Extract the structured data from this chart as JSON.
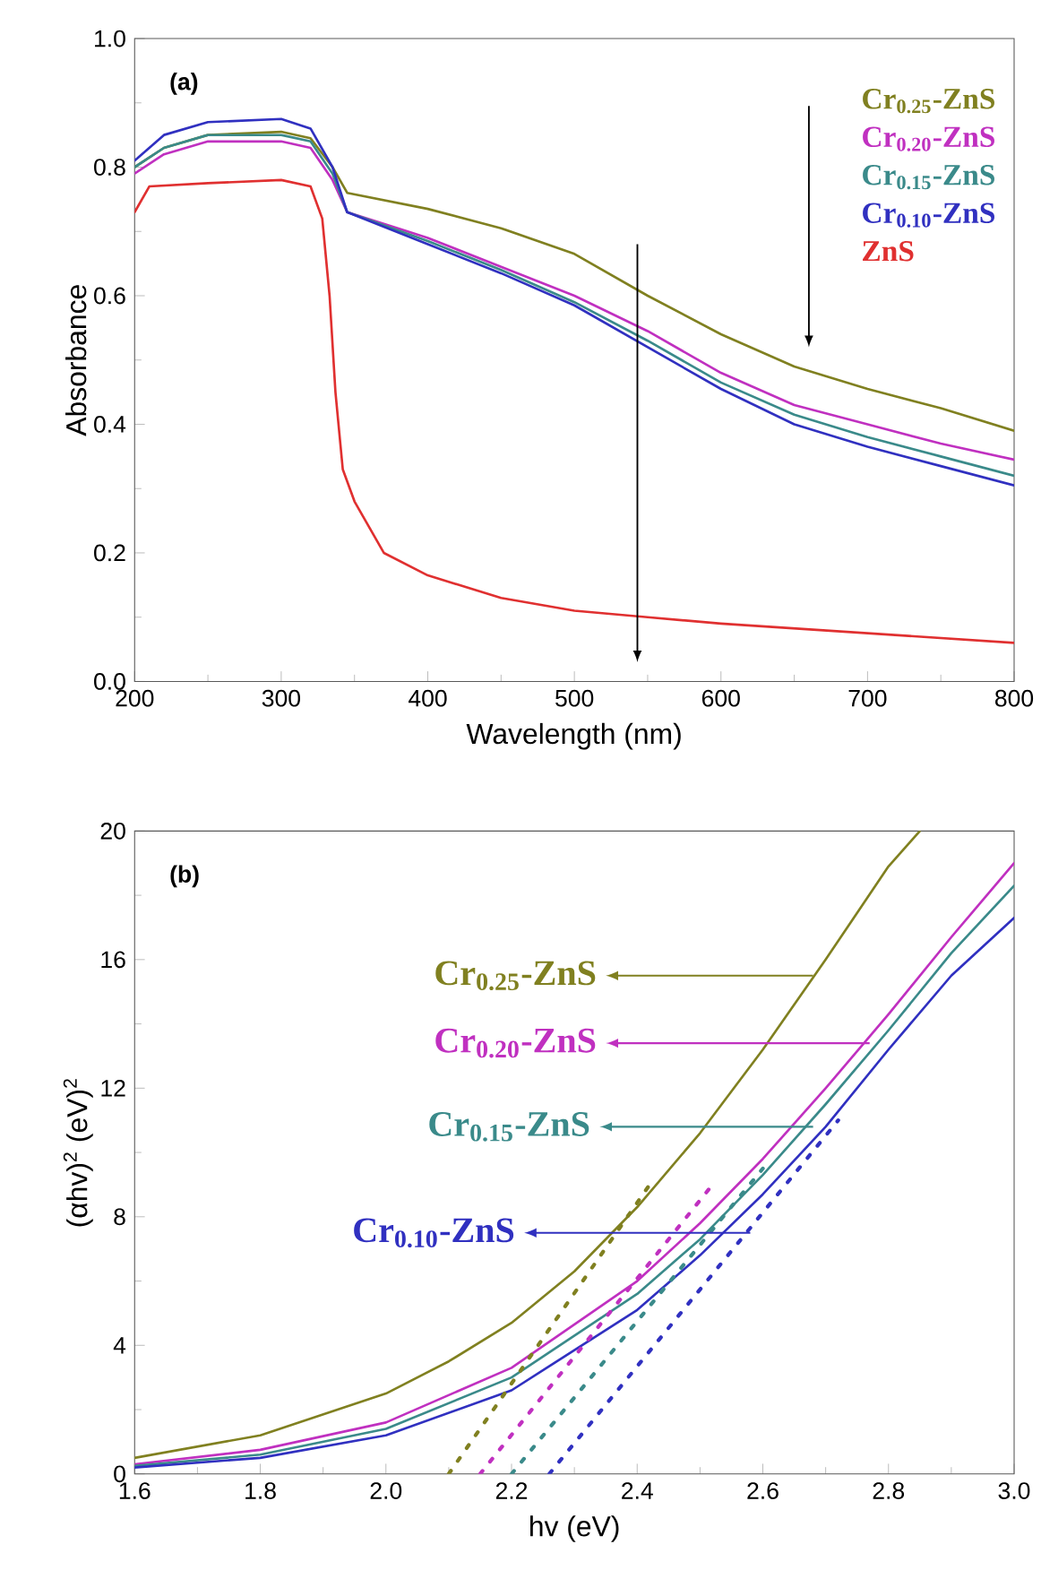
{
  "chart_data": [
    {
      "type": "line",
      "xlabel": "Wavelength (nm)",
      "ylabel": "Absorbance",
      "xlim": [
        200,
        800
      ],
      "ylim": [
        0,
        1
      ],
      "xticks": [
        200,
        300,
        400,
        500,
        600,
        700,
        800
      ],
      "yticks": [
        {
          "value": 0,
          "label": "0.0"
        },
        0.2,
        0.4,
        0.6,
        0.8,
        {
          "value": 1,
          "label": "1.0"
        }
      ],
      "legend": "top right",
      "marker": "none",
      "line_style": "solid",
      "grid": false,
      "annotations": [
        "(a)"
      ],
      "series": [
        {
          "name": "Cr$_{0.25}$-ZnS",
          "color": "#808020",
          "x": [
            200,
            220,
            250,
            300,
            320,
            335,
            345,
            400,
            450,
            500,
            550,
            600,
            650,
            700,
            750,
            800
          ],
          "values": [
            0.8,
            0.83,
            0.85,
            0.855,
            0.845,
            0.8,
            0.76,
            0.735,
            0.705,
            0.665,
            0.6,
            0.54,
            0.49,
            0.455,
            0.425,
            0.39
          ]
        },
        {
          "name": "Cr$_{0.20}$-ZnS",
          "color": "#c030c0",
          "x": [
            200,
            220,
            250,
            300,
            320,
            335,
            345,
            400,
            450,
            500,
            550,
            600,
            650,
            700,
            750,
            800
          ],
          "values": [
            0.79,
            0.82,
            0.84,
            0.84,
            0.83,
            0.78,
            0.73,
            0.69,
            0.645,
            0.6,
            0.545,
            0.48,
            0.43,
            0.4,
            0.37,
            0.345
          ]
        },
        {
          "name": "Cr$_{0.15}$-ZnS",
          "color": "#3a8a8a",
          "x": [
            200,
            220,
            250,
            300,
            320,
            335,
            345,
            400,
            450,
            500,
            550,
            600,
            650,
            700,
            750,
            800
          ],
          "values": [
            0.8,
            0.83,
            0.85,
            0.85,
            0.84,
            0.79,
            0.73,
            0.685,
            0.64,
            0.59,
            0.53,
            0.465,
            0.415,
            0.38,
            0.35,
            0.32
          ]
        },
        {
          "name": "Cr$_{0.10}$-ZnS",
          "color": "#3030c0",
          "x": [
            200,
            220,
            250,
            300,
            320,
            335,
            345,
            400,
            450,
            500,
            550,
            600,
            650,
            700,
            750,
            800
          ],
          "values": [
            0.81,
            0.85,
            0.87,
            0.875,
            0.86,
            0.8,
            0.73,
            0.68,
            0.635,
            0.585,
            0.52,
            0.455,
            0.4,
            0.365,
            0.335,
            0.305
          ]
        },
        {
          "name": "ZnS",
          "color": "#e03030",
          "x": [
            200,
            210,
            250,
            300,
            320,
            328,
            333,
            337,
            342,
            350,
            370,
            400,
            450,
            500,
            550,
            600,
            700,
            800
          ],
          "values": [
            0.73,
            0.77,
            0.775,
            0.78,
            0.77,
            0.72,
            0.6,
            0.45,
            0.33,
            0.28,
            0.2,
            0.165,
            0.13,
            0.11,
            0.1,
            0.09,
            0.075,
            0.06
          ]
        }
      ]
    },
    {
      "type": "line",
      "xlabel": "hv (eV)",
      "ylabel": "(αhv)$^{2}$ (eV)$^{2}$",
      "xlim": [
        1.6,
        3.0
      ],
      "ylim": [
        0,
        20
      ],
      "xticks": [
        1.6,
        1.8,
        {
          "value": 2,
          "label": "2.0"
        },
        2.2,
        2.4,
        2.6,
        2.8,
        {
          "value": 3,
          "label": "3.0"
        }
      ],
      "yticks": [
        0,
        4,
        8,
        12,
        16,
        20
      ],
      "legend": false,
      "marker": "none",
      "grid": false,
      "annotations": [
        "(b)",
        {
          "text": "Cr$_{0.25}$-ZnS",
          "x": 2.68,
          "y": 15.5
        },
        {
          "text": "Cr$_{0.20}$-ZnS",
          "x": 2.77,
          "y": 13.4
        },
        {
          "text": "Cr$_{0.15}$-ZnS",
          "x": 2.68,
          "y": 10.8
        },
        {
          "text": "Cr$_{0.10}$-ZnS",
          "x": 2.58,
          "y": 7.5
        }
      ],
      "series": [
        {
          "color": "#808020",
          "line_style": "solid",
          "x": [
            1.6,
            1.8,
            2.0,
            2.1,
            2.2,
            2.3,
            2.4,
            2.5,
            2.6,
            2.7,
            2.8,
            2.85
          ],
          "values": [
            0.5,
            1.2,
            2.5,
            3.5,
            4.7,
            6.3,
            8.3,
            10.6,
            13.2,
            16.0,
            18.9,
            20
          ]
        },
        {
          "color": "#c030c0",
          "line_style": "solid",
          "x": [
            1.6,
            1.8,
            2.0,
            2.2,
            2.4,
            2.5,
            2.6,
            2.7,
            2.8,
            2.9,
            3.0
          ],
          "values": [
            0.3,
            0.75,
            1.6,
            3.3,
            6.0,
            7.8,
            9.8,
            12.0,
            14.3,
            16.7,
            19.0
          ]
        },
        {
          "color": "#3a8a8a",
          "line_style": "solid",
          "x": [
            1.6,
            1.8,
            2.0,
            2.2,
            2.4,
            2.5,
            2.6,
            2.7,
            2.8,
            2.9,
            3.0
          ],
          "values": [
            0.25,
            0.6,
            1.4,
            3.0,
            5.6,
            7.3,
            9.3,
            11.5,
            13.8,
            16.2,
            18.3
          ]
        },
        {
          "color": "#3030c0",
          "line_style": "solid",
          "x": [
            1.6,
            1.8,
            2.0,
            2.2,
            2.4,
            2.5,
            2.6,
            2.7,
            2.8,
            2.9,
            3.0
          ],
          "values": [
            0.2,
            0.5,
            1.2,
            2.6,
            5.1,
            6.8,
            8.7,
            10.8,
            13.2,
            15.5,
            17.3
          ]
        },
        {
          "color": "#808020",
          "line_style": "dotted",
          "x": [
            2.1,
            2.42
          ],
          "values": [
            0,
            9
          ]
        },
        {
          "color": "#c030c0",
          "line_style": "dotted",
          "x": [
            2.15,
            2.52
          ],
          "values": [
            0,
            9
          ]
        },
        {
          "color": "#3a8a8a",
          "line_style": "dotted",
          "x": [
            2.2,
            2.6
          ],
          "values": [
            0,
            9.5
          ]
        },
        {
          "color": "#3030c0",
          "line_style": "dotted",
          "x": [
            2.26,
            2.72
          ],
          "values": [
            0,
            11
          ]
        }
      ]
    }
  ]
}
